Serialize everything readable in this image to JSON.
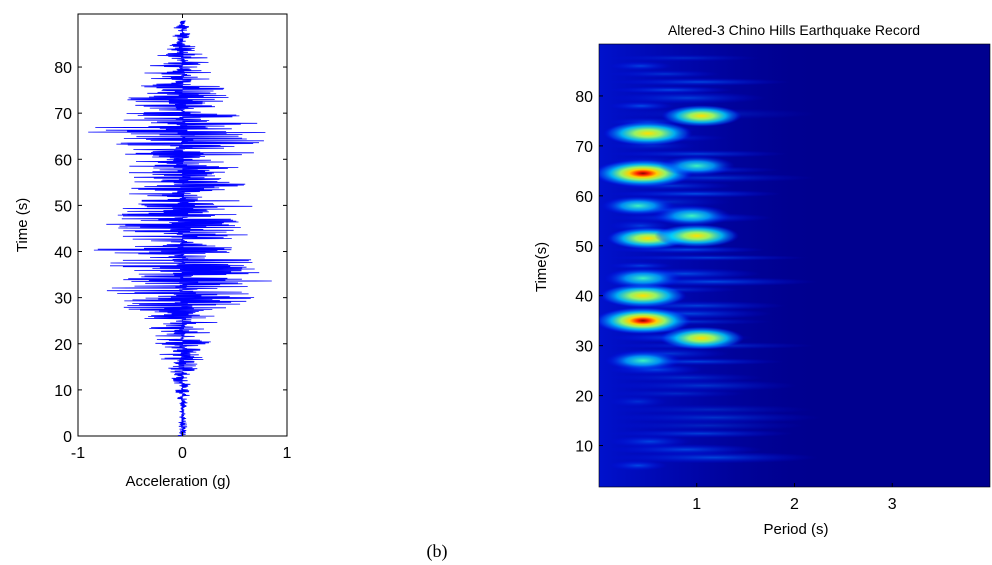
{
  "caption": "(b)",
  "chart_data": [
    {
      "type": "line",
      "title": "",
      "xlabel": "Acceleration (g)",
      "ylabel": "Time (s)",
      "xlim": [
        -1,
        1
      ],
      "ylim": [
        0,
        90
      ],
      "xticks": [
        -1,
        0,
        1
      ],
      "xticklabels": [
        "-1",
        "0",
        "1"
      ],
      "yticks": [
        0,
        10,
        20,
        30,
        40,
        50,
        60,
        70,
        80
      ],
      "yticklabels": [
        "0",
        "10",
        "20",
        "30",
        "40",
        "50",
        "60",
        "70",
        "80"
      ],
      "grid": false,
      "line_color": "#0000ff",
      "envelope": {
        "time": [
          0,
          2,
          5,
          8,
          10,
          12,
          15,
          18,
          20,
          22,
          25,
          27,
          30,
          32,
          34,
          36,
          38,
          40,
          42,
          45,
          48,
          50,
          52,
          54,
          56,
          58,
          60,
          62,
          64,
          66,
          68,
          70,
          72,
          74,
          76,
          78,
          80,
          82,
          85,
          88,
          90
        ],
        "left": [
          -0.05,
          -0.05,
          -0.03,
          -0.06,
          -0.08,
          -0.1,
          -0.15,
          -0.25,
          -0.3,
          -0.28,
          -0.4,
          -0.45,
          -0.9,
          -0.8,
          -0.85,
          -0.9,
          -0.7,
          -0.95,
          -0.6,
          -0.75,
          -0.8,
          -0.9,
          -0.7,
          -0.6,
          -0.5,
          -0.55,
          -0.6,
          -0.6,
          -1.0,
          -0.9,
          -0.8,
          -0.7,
          -0.55,
          -0.55,
          -0.45,
          -0.4,
          -0.35,
          -0.3,
          -0.15,
          -0.1,
          -0.05
        ],
        "right": [
          0.05,
          0.05,
          0.03,
          0.06,
          0.08,
          0.1,
          0.15,
          0.25,
          0.3,
          0.25,
          0.35,
          0.3,
          0.85,
          0.6,
          1.0,
          0.8,
          0.7,
          0.75,
          0.55,
          0.7,
          0.65,
          0.75,
          0.6,
          0.65,
          0.5,
          0.55,
          0.6,
          0.75,
          0.8,
          0.9,
          0.7,
          0.6,
          0.5,
          0.5,
          0.4,
          0.35,
          0.3,
          0.25,
          0.1,
          0.08,
          0.05
        ]
      }
    },
    {
      "type": "heatmap",
      "title": "Altered-3 Chino Hills Earthquake Record",
      "xlabel": "Period (s)",
      "ylabel": "Time(s)",
      "xlim": [
        0,
        4
      ],
      "ylim": [
        0,
        90
      ],
      "xticks": [
        1,
        2,
        3
      ],
      "xticklabels": [
        "1",
        "2",
        "3"
      ],
      "yticks": [
        10,
        20,
        30,
        40,
        50,
        60,
        70,
        80
      ],
      "yticklabels": [
        "10",
        "20",
        "30",
        "40",
        "50",
        "60",
        "70",
        "80"
      ],
      "colormap": "jet",
      "background_color": "#00008f",
      "hotspots": [
        {
          "period": 0.45,
          "time": 64.5,
          "intensity": 1.0
        },
        {
          "period": 0.45,
          "time": 35,
          "intensity": 0.95
        },
        {
          "period": 0.5,
          "time": 72.5,
          "intensity": 0.75
        },
        {
          "period": 0.45,
          "time": 40,
          "intensity": 0.7
        },
        {
          "period": 0.5,
          "time": 51.5,
          "intensity": 0.6
        },
        {
          "period": 1.0,
          "time": 52,
          "intensity": 0.65
        },
        {
          "period": 1.05,
          "time": 31.5,
          "intensity": 0.65
        },
        {
          "period": 1.05,
          "time": 76,
          "intensity": 0.55
        },
        {
          "period": 0.95,
          "time": 56,
          "intensity": 0.5
        },
        {
          "period": 0.45,
          "time": 43.5,
          "intensity": 0.5
        },
        {
          "period": 0.45,
          "time": 27,
          "intensity": 0.45
        },
        {
          "period": 1.0,
          "time": 66,
          "intensity": 0.45
        },
        {
          "period": 0.4,
          "time": 58,
          "intensity": 0.4
        }
      ]
    }
  ]
}
